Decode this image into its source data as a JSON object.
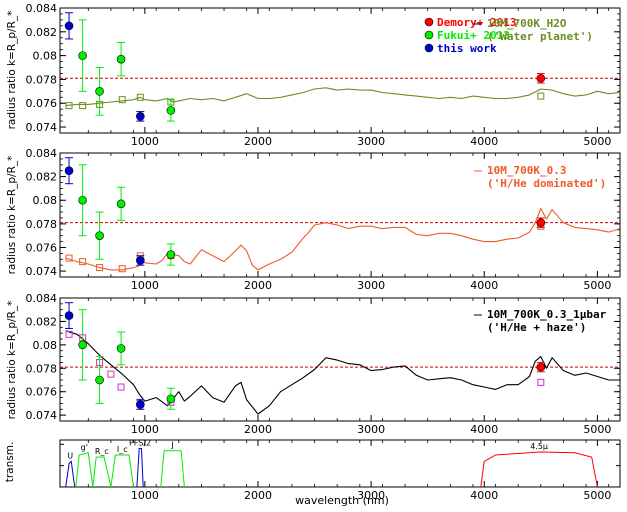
{
  "chart_data": [
    {
      "type": "line",
      "ylabel": "radius ratio k=R_p/R_*",
      "xlim": [
        250,
        5200
      ],
      "ylim": [
        0.0735,
        0.084
      ],
      "yticks": [
        0.074,
        0.076,
        0.078,
        0.08,
        0.082,
        0.084
      ],
      "ytick_labels": [
        "0.074",
        "0.076",
        "0.078",
        "0.08",
        "0.082",
        "0.084"
      ],
      "xticks": [
        1000,
        2000,
        3000,
        4000,
        5000
      ],
      "xtick_labels": [
        "1000",
        "2000",
        "3000",
        "4000",
        "5000"
      ],
      "reference_line": 0.0781,
      "model": {
        "name_line1": "10M_700K_H2O",
        "name_line2": "('Water planet')",
        "color": "#6b8e23",
        "x": [
          300,
          400,
          500,
          600,
          700,
          800,
          900,
          960,
          1000,
          1100,
          1200,
          1250,
          1300,
          1400,
          1500,
          1600,
          1700,
          1800,
          1900,
          2000,
          2100,
          2200,
          2300,
          2400,
          2500,
          2600,
          2700,
          2800,
          2900,
          3000,
          3100,
          3200,
          3300,
          3400,
          3500,
          3600,
          3700,
          3800,
          3900,
          4000,
          4100,
          4200,
          4300,
          4400,
          4500,
          4600,
          4700,
          4800,
          4900,
          5000,
          5100,
          5200
        ],
        "y": [
          0.0758,
          0.0759,
          0.0759,
          0.076,
          0.0761,
          0.0762,
          0.0763,
          0.0765,
          0.0763,
          0.0762,
          0.0764,
          0.0761,
          0.0762,
          0.0764,
          0.0763,
          0.0764,
          0.0762,
          0.0765,
          0.0768,
          0.0764,
          0.0764,
          0.0765,
          0.0767,
          0.0769,
          0.0772,
          0.0773,
          0.0771,
          0.0772,
          0.0771,
          0.0771,
          0.0769,
          0.0768,
          0.0767,
          0.0766,
          0.0765,
          0.0764,
          0.0765,
          0.0764,
          0.0766,
          0.0765,
          0.0764,
          0.0764,
          0.0765,
          0.0767,
          0.0772,
          0.0771,
          0.0768,
          0.0766,
          0.0767,
          0.077,
          0.0768,
          0.0769
        ]
      },
      "binned_model": {
        "x": [
          330,
          450,
          600,
          800,
          960,
          1230,
          4500
        ],
        "y": [
          0.0758,
          0.0758,
          0.0759,
          0.0763,
          0.0765,
          0.0761,
          0.0766
        ],
        "color": "#6b8e23"
      },
      "series": [
        {
          "name": "Demory+ 2013",
          "color": "#ff0000",
          "x": [
            4500
          ],
          "y": [
            0.0781
          ],
          "err": [
            0.0004
          ]
        },
        {
          "name": "Fukui+ 2013",
          "color": "#00ee00",
          "x": [
            450,
            600,
            790,
            1230
          ],
          "y": [
            0.08,
            0.077,
            0.0797,
            0.0754
          ],
          "err": [
            0.003,
            0.002,
            0.0014,
            0.0009
          ]
        },
        {
          "name": "this work",
          "color": "#0000cc",
          "x": [
            330,
            960
          ],
          "y": [
            0.0825,
            0.0749
          ],
          "err": [
            0.0011,
            0.0004
          ]
        }
      ],
      "legend_loc": "top"
    },
    {
      "type": "line",
      "ylabel": "radius ratio k=R_p/R_*",
      "xlim": [
        250,
        5200
      ],
      "ylim": [
        0.0735,
        0.084
      ],
      "yticks": [
        0.074,
        0.076,
        0.078,
        0.08,
        0.082,
        0.084
      ],
      "ytick_labels": [
        "0.074",
        "0.076",
        "0.078",
        "0.08",
        "0.082",
        "0.084"
      ],
      "xticks": [
        1000,
        2000,
        3000,
        4000,
        5000
      ],
      "xtick_labels": [
        "1000",
        "2000",
        "3000",
        "4000",
        "5000"
      ],
      "reference_line": 0.0781,
      "model": {
        "name_line1": "10M_700K_0.3",
        "name_line2": "('H/He dominated')",
        "color": "#f05a28",
        "x": [
          300,
          400,
          500,
          600,
          700,
          800,
          900,
          940,
          960,
          1000,
          1100,
          1150,
          1200,
          1300,
          1350,
          1400,
          1450,
          1500,
          1600,
          1700,
          1800,
          1850,
          1900,
          1950,
          2000,
          2100,
          2200,
          2300,
          2400,
          2450,
          2500,
          2600,
          2700,
          2800,
          2900,
          3000,
          3100,
          3200,
          3300,
          3400,
          3500,
          3600,
          3700,
          3800,
          3900,
          4000,
          4100,
          4200,
          4300,
          4400,
          4450,
          4500,
          4550,
          4600,
          4700,
          4800,
          4900,
          5000,
          5100,
          5200
        ],
        "y": [
          0.0751,
          0.0748,
          0.0746,
          0.0743,
          0.0741,
          0.0741,
          0.0743,
          0.0744,
          0.075,
          0.0747,
          0.0746,
          0.0749,
          0.0755,
          0.0753,
          0.0748,
          0.0746,
          0.0752,
          0.0758,
          0.0753,
          0.0748,
          0.0757,
          0.0762,
          0.0757,
          0.0745,
          0.0741,
          0.0746,
          0.075,
          0.0756,
          0.0768,
          0.0773,
          0.0779,
          0.0781,
          0.0779,
          0.0776,
          0.0778,
          0.0778,
          0.0776,
          0.0777,
          0.0777,
          0.0771,
          0.077,
          0.0772,
          0.0772,
          0.077,
          0.0767,
          0.0765,
          0.0765,
          0.0767,
          0.0768,
          0.0773,
          0.0781,
          0.0793,
          0.0784,
          0.0792,
          0.0781,
          0.0777,
          0.0776,
          0.0775,
          0.0773,
          0.0776
        ]
      },
      "binned_model": {
        "x": [
          330,
          450,
          600,
          800,
          960,
          1230,
          4500
        ],
        "y": [
          0.0751,
          0.0748,
          0.0743,
          0.0742,
          0.0753,
          0.0753,
          0.0778
        ],
        "color": "#f05a28"
      },
      "series": [
        {
          "name": "Demory+ 2013",
          "color": "#ff0000",
          "x": [
            4500
          ],
          "y": [
            0.0781
          ],
          "err": [
            0.0004
          ]
        },
        {
          "name": "Fukui+ 2013",
          "color": "#00ee00",
          "x": [
            450,
            600,
            790,
            1230
          ],
          "y": [
            0.08,
            0.077,
            0.0797,
            0.0754
          ],
          "err": [
            0.003,
            0.002,
            0.0014,
            0.0009
          ]
        },
        {
          "name": "this work",
          "color": "#0000cc",
          "x": [
            330,
            960
          ],
          "y": [
            0.0825,
            0.0749
          ],
          "err": [
            0.0011,
            0.0004
          ]
        }
      ]
    },
    {
      "type": "line",
      "ylabel": "radius ratio k=R_p/R_*",
      "xlim": [
        250,
        5200
      ],
      "ylim": [
        0.0735,
        0.084
      ],
      "yticks": [
        0.074,
        0.076,
        0.078,
        0.08,
        0.082,
        0.084
      ],
      "ytick_labels": [
        "0.074",
        "0.076",
        "0.078",
        "0.08",
        "0.082",
        "0.084"
      ],
      "xticks": [
        1000,
        2000,
        3000,
        4000,
        5000
      ],
      "xtick_labels": [
        "1000",
        "2000",
        "3000",
        "4000",
        "5000"
      ],
      "reference_line": 0.0781,
      "model": {
        "name_line1": "10M_700K_0.3_1μbar",
        "name_line2": "('H/He + haze')",
        "color": "#000000",
        "x": [
          300,
          400,
          500,
          600,
          700,
          800,
          900,
          950,
          1000,
          1100,
          1200,
          1300,
          1350,
          1400,
          1500,
          1600,
          1700,
          1800,
          1850,
          1900,
          2000,
          2100,
          2200,
          2300,
          2400,
          2500,
          2600,
          2700,
          2800,
          2900,
          3000,
          3100,
          3200,
          3300,
          3400,
          3500,
          3600,
          3700,
          3800,
          3900,
          4000,
          4100,
          4200,
          4300,
          4400,
          4450,
          4500,
          4550,
          4600,
          4700,
          4800,
          4900,
          5000,
          5100,
          5200
        ],
        "y": [
          0.0812,
          0.0809,
          0.0801,
          0.0791,
          0.0783,
          0.0775,
          0.0766,
          0.0758,
          0.0752,
          0.0755,
          0.0748,
          0.076,
          0.0752,
          0.0756,
          0.0765,
          0.0755,
          0.0751,
          0.0765,
          0.0768,
          0.0753,
          0.0741,
          0.0748,
          0.076,
          0.0766,
          0.0772,
          0.0779,
          0.0789,
          0.0787,
          0.0784,
          0.0783,
          0.0778,
          0.0779,
          0.0781,
          0.0782,
          0.0774,
          0.077,
          0.0771,
          0.0772,
          0.077,
          0.0766,
          0.0764,
          0.0762,
          0.0766,
          0.0766,
          0.0773,
          0.0786,
          0.079,
          0.078,
          0.0789,
          0.0778,
          0.0774,
          0.0776,
          0.0773,
          0.077,
          0.077
        ]
      },
      "binned_model": {
        "x": [
          330,
          450,
          600,
          700,
          790,
          960,
          1230,
          4500
        ],
        "y": [
          0.0809,
          0.0806,
          0.0785,
          0.0775,
          0.0764,
          0.0751,
          0.0751,
          0.0768
        ],
        "color": "#cc33cc"
      },
      "series": [
        {
          "name": "Demory+ 2013",
          "color": "#ff0000",
          "x": [
            4500
          ],
          "y": [
            0.0781
          ],
          "err": [
            0.0004
          ]
        },
        {
          "name": "Fukui+ 2013",
          "color": "#00ee00",
          "x": [
            450,
            600,
            790,
            1230
          ],
          "y": [
            0.08,
            0.077,
            0.0797,
            0.0754
          ],
          "err": [
            0.003,
            0.002,
            0.0014,
            0.0009
          ]
        },
        {
          "name": "this work",
          "color": "#0000cc",
          "x": [
            330,
            960
          ],
          "y": [
            0.0825,
            0.0749
          ],
          "err": [
            0.0011,
            0.0004
          ]
        }
      ]
    },
    {
      "type": "line",
      "ylabel": "transm.",
      "xlabel": "wavelength (nm)",
      "xlim": [
        250,
        5200
      ],
      "ylim": [
        0,
        1.1
      ],
      "xticks": [
        1000,
        2000,
        3000,
        4000,
        5000
      ],
      "xtick_labels": [
        "1000",
        "2000",
        "3000",
        "4000",
        "5000"
      ],
      "filters": [
        {
          "label": "U",
          "color": "#0000cc",
          "x": [
            300,
            330,
            350,
            380
          ],
          "y": [
            0,
            0.55,
            0.6,
            0
          ]
        },
        {
          "label": "g'",
          "color": "#00ee00",
          "x": [
            390,
            420,
            500,
            540
          ],
          "y": [
            0,
            0.75,
            0.8,
            0
          ]
        },
        {
          "label": "R_c",
          "color": "#00ee00",
          "x": [
            540,
            570,
            640,
            700
          ],
          "y": [
            0,
            0.7,
            0.7,
            0
          ]
        },
        {
          "label": "I_c",
          "color": "#00ee00",
          "x": [
            700,
            740,
            860,
            900
          ],
          "y": [
            0,
            0.75,
            0.75,
            0
          ]
        },
        {
          "label": "PFS/2",
          "color": "#0000cc",
          "x": [
            930,
            950,
            970,
            985
          ],
          "y": [
            0,
            0.9,
            0.9,
            0
          ]
        },
        {
          "label": "J",
          "color": "#00ee00",
          "x": [
            1140,
            1170,
            1320,
            1350
          ],
          "y": [
            0,
            0.85,
            0.85,
            0
          ]
        },
        {
          "label": "4.5μ",
          "color": "#ff0000",
          "x": [
            3970,
            4000,
            4100,
            4500,
            4800,
            4950,
            5000
          ],
          "y": [
            0,
            0.6,
            0.75,
            0.82,
            0.8,
            0.7,
            0
          ]
        }
      ]
    }
  ]
}
